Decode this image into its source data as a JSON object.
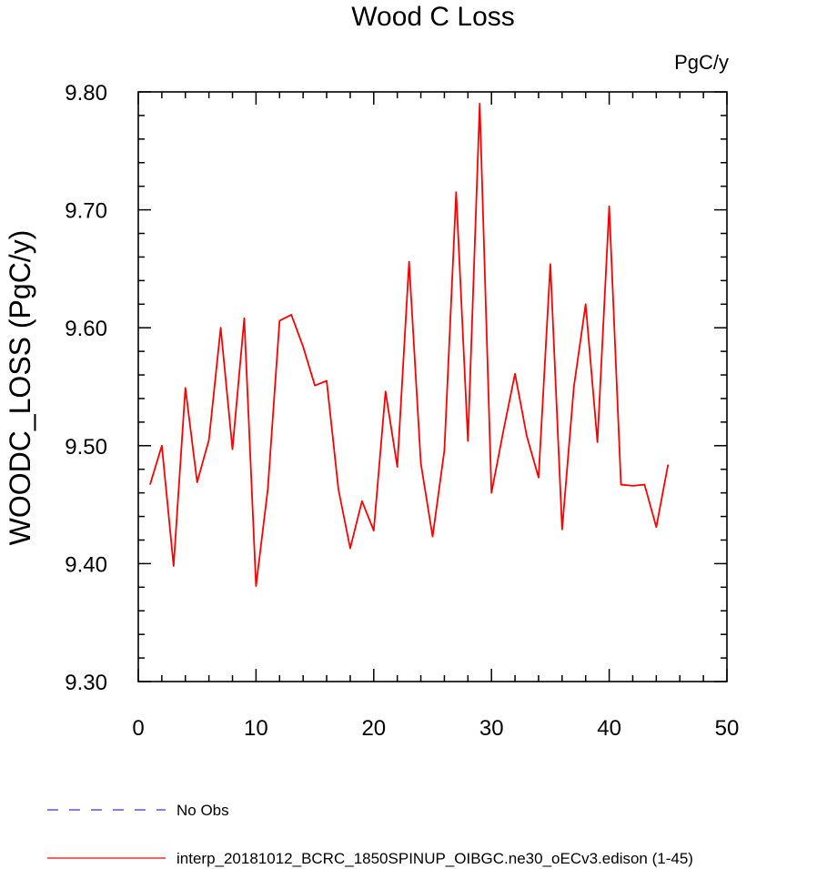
{
  "chart_data": {
    "type": "line",
    "title": "Wood C Loss",
    "units": "PgC/y",
    "xlabel": "",
    "ylabel": "WOODC_LOSS  (PgC/y)",
    "xlim": [
      0,
      50
    ],
    "ylim": [
      9.3,
      9.8
    ],
    "xticks": [
      0,
      10,
      20,
      30,
      40,
      50
    ],
    "xtick_labels": [
      "0",
      "10",
      "20",
      "30",
      "40",
      "50"
    ],
    "yticks": [
      9.3,
      9.4,
      9.5,
      9.6,
      9.7,
      9.8
    ],
    "ytick_labels": [
      "9.30",
      "9.40",
      "9.50",
      "9.60",
      "9.70",
      "9.80"
    ],
    "grid": false,
    "legend_position": "bottom",
    "series": [
      {
        "name": "No Obs",
        "color": "#3333ff",
        "style": "dashed",
        "x": [],
        "values": []
      },
      {
        "name": "interp_20181012_BCRC_1850SPINUP_OIBGC.ne30_oECv3.edison (1-45)",
        "color": "#ff0000",
        "style": "solid",
        "x": [
          1,
          2,
          3,
          4,
          5,
          6,
          7,
          8,
          9,
          10,
          11,
          12,
          13,
          14,
          15,
          16,
          17,
          18,
          19,
          20,
          21,
          22,
          23,
          24,
          25,
          26,
          27,
          28,
          29,
          30,
          31,
          32,
          33,
          34,
          35,
          36,
          37,
          38,
          39,
          40,
          41,
          42,
          43,
          44,
          45
        ],
        "values": [
          9.467,
          9.5,
          9.398,
          9.549,
          9.469,
          9.505,
          9.6,
          9.497,
          9.608,
          9.381,
          9.463,
          9.606,
          9.611,
          9.584,
          9.551,
          9.555,
          9.463,
          9.413,
          9.453,
          9.428,
          9.546,
          9.482,
          9.656,
          9.485,
          9.423,
          9.496,
          9.715,
          9.504,
          9.79,
          9.46,
          9.512,
          9.561,
          9.508,
          9.473,
          9.654,
          9.429,
          9.55,
          9.62,
          9.503,
          9.703,
          9.467,
          9.466,
          9.467,
          9.431,
          9.484
        ]
      }
    ]
  }
}
